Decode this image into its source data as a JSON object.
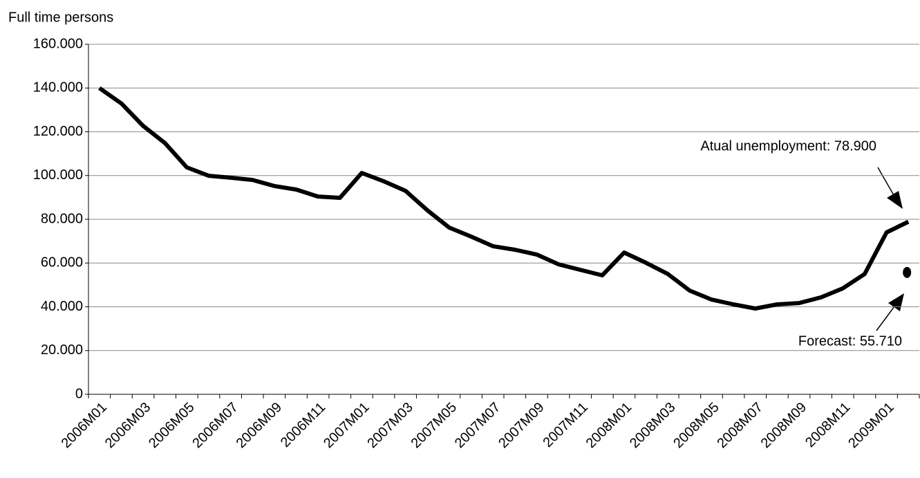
{
  "chart_data": {
    "type": "line",
    "y_label": "Full time persons",
    "categories": [
      "2006M01",
      null,
      "2006M03",
      null,
      "2006M05",
      null,
      "2006M07",
      null,
      "2006M09",
      null,
      "2006M11",
      null,
      "2007M01",
      null,
      "2007M03",
      null,
      "2007M05",
      null,
      "2007M07",
      null,
      "2007M09",
      null,
      "2007M11",
      null,
      "2008M01",
      null,
      "2008M03",
      null,
      "2008M05",
      null,
      "2008M07",
      null,
      "2008M09",
      null,
      "2008M11",
      null,
      "2009M01",
      null
    ],
    "values": [
      140000,
      133000,
      122700,
      114800,
      103700,
      99900,
      99000,
      98000,
      95200,
      93600,
      90400,
      89800,
      101200,
      97400,
      93000,
      84100,
      76200,
      72100,
      67700,
      66100,
      63900,
      59400,
      56900,
      54400,
      64800,
      60100,
      55000,
      47400,
      43300,
      41100,
      39200,
      41100,
      41700,
      44300,
      48400,
      55000,
      74000,
      78900
    ],
    "color": "#000000",
    "forecast_values": [
      null,
      null,
      null,
      null,
      null,
      null,
      null,
      null,
      null,
      null,
      null,
      null,
      null,
      null,
      null,
      null,
      null,
      null,
      null,
      null,
      null,
      null,
      null,
      null,
      null,
      null,
      null,
      null,
      null,
      null,
      null,
      null,
      null,
      null,
      null,
      null,
      null,
      55710
    ],
    "annotations": [
      "Atual unemployment: 78.900",
      "Forecast: 55.710"
    ],
    "ylim": [
      0,
      160000
    ],
    "yticks": [
      0,
      {
        "value": 20000,
        "label": "20.000"
      },
      {
        "value": 40000,
        "label": "40.000"
      },
      {
        "value": 60000,
        "label": "60.000"
      },
      {
        "value": 80000,
        "label": "80.000"
      },
      {
        "value": 100000,
        "label": "100.000"
      },
      {
        "value": 120000,
        "label": "120.000"
      },
      {
        "value": 140000,
        "label": "140.000"
      },
      {
        "value": 160000,
        "label": "160.000"
      }
    ],
    "grid": true
  }
}
